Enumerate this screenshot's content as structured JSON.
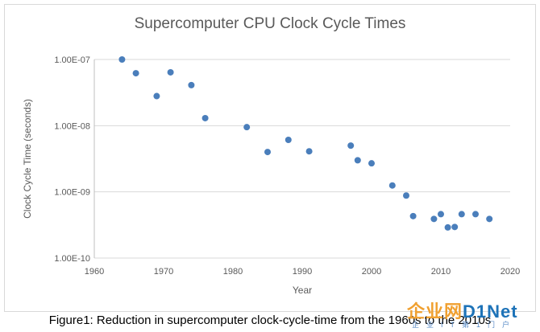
{
  "chart_data": {
    "type": "scatter",
    "title": "Supercomputer CPU Clock Cycle Times",
    "xlabel": "Year",
    "ylabel": "Clock Cycle Time (seconds)",
    "xlim": [
      1960,
      2020
    ],
    "ylim": [
      1e-10,
      1e-07
    ],
    "yscale": "log",
    "grid": "horizontal",
    "xticks": [
      "1960",
      "1970",
      "1980",
      "1990",
      "2000",
      "2010",
      "2020"
    ],
    "yticks": [
      "1.00E-07",
      "1.00E-08",
      "1.00E-09",
      "1.00E-10"
    ],
    "point_color": "#4a7ebb",
    "points": [
      {
        "x": 1964,
        "y": 1e-07
      },
      {
        "x": 1966,
        "y": 6.2e-08
      },
      {
        "x": 1969,
        "y": 2.8e-08
      },
      {
        "x": 1971,
        "y": 6.4e-08
      },
      {
        "x": 1974,
        "y": 4.1e-08
      },
      {
        "x": 1976,
        "y": 1.3e-08
      },
      {
        "x": 1982,
        "y": 9.5e-09
      },
      {
        "x": 1985,
        "y": 4e-09
      },
      {
        "x": 1988,
        "y": 6.1e-09
      },
      {
        "x": 1991,
        "y": 4.1e-09
      },
      {
        "x": 1997,
        "y": 5e-09
      },
      {
        "x": 1998,
        "y": 3e-09
      },
      {
        "x": 2000,
        "y": 2.7e-09
      },
      {
        "x": 2003,
        "y": 1.25e-09
      },
      {
        "x": 2005,
        "y": 8.8e-10
      },
      {
        "x": 2006,
        "y": 4.3e-10
      },
      {
        "x": 2009,
        "y": 3.9e-10
      },
      {
        "x": 2010,
        "y": 4.6e-10
      },
      {
        "x": 2011,
        "y": 2.9e-10
      },
      {
        "x": 2012,
        "y": 2.95e-10
      },
      {
        "x": 2013,
        "y": 4.6e-10
      },
      {
        "x": 2015,
        "y": 4.6e-10
      },
      {
        "x": 2017,
        "y": 3.9e-10
      }
    ]
  },
  "caption": "Figure1: Reduction in supercomputer clock-cycle-time from the 1960s to the 2010s",
  "watermark": {
    "logo_text": "企业网",
    "logo_brand": "D1Net",
    "subtitle": "企业IT第1门户"
  }
}
